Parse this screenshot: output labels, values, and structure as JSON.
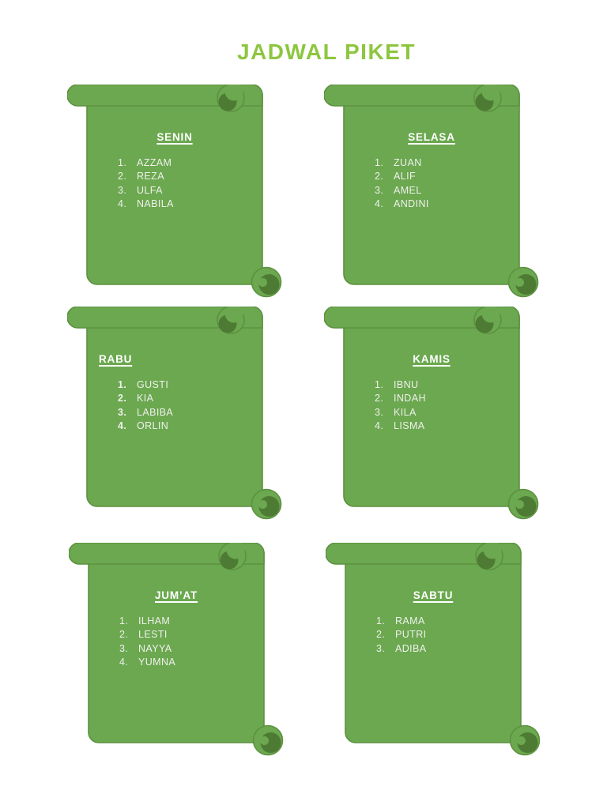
{
  "page": {
    "title": "JADWAL PIKET"
  },
  "colors": {
    "page_bg": "#ffffff",
    "heading_green": "#8dc63f",
    "scroll_fill": "#6ba84f",
    "scroll_dark": "#4e7b33",
    "scroll_stroke": "#5d9141",
    "day_title_color": "#ffffff",
    "member_text_color": "#f0f0ee"
  },
  "schedule": [
    {
      "day": "SENIN",
      "members": [
        "AZZAM",
        "REZA",
        "ULFA",
        "NABILA"
      ],
      "title_align": "center",
      "bold_numbers": false
    },
    {
      "day": "SELASA",
      "members": [
        "ZUAN",
        "ALIF",
        "AMEL",
        "ANDINI"
      ],
      "title_align": "center",
      "bold_numbers": false
    },
    {
      "day": "RABU",
      "members": [
        "GUSTI",
        "KIA",
        "LABIBA",
        "ORLIN"
      ],
      "title_align": "left",
      "bold_numbers": true
    },
    {
      "day": "KAMIS",
      "members": [
        "IBNU",
        "INDAH",
        "KILA",
        "LISMA"
      ],
      "title_align": "center",
      "bold_numbers": false
    },
    {
      "day": "JUM’AT",
      "members": [
        "ILHAM",
        "LESTI",
        "NAYYA",
        "YUMNA"
      ],
      "title_align": "center",
      "bold_numbers": false
    },
    {
      "day": "SABTU",
      "members": [
        "RAMA",
        "PUTRI",
        "ADIBA"
      ],
      "title_align": "center",
      "bold_numbers": false
    }
  ]
}
